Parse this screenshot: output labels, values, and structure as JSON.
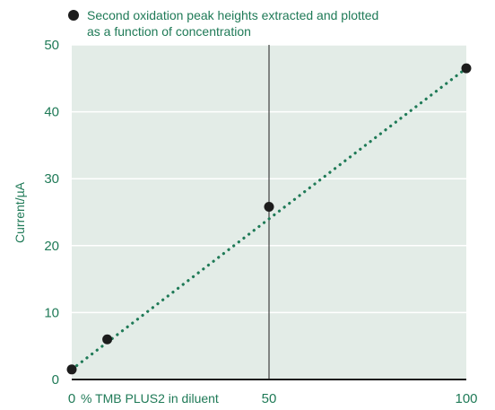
{
  "chart_data": {
    "type": "scatter",
    "legend": {
      "line1": "Second oxidation peak heights extracted and plotted",
      "line2": "as a function of concentration",
      "placement": "top-left"
    },
    "ylabel": "Current/µA",
    "xlabel": "% TMB PLUS2 in diluent",
    "xlim": [
      0,
      100
    ],
    "ylim": [
      0,
      50
    ],
    "x_ticks": [
      "0",
      "50",
      "100"
    ],
    "y_ticks": [
      "0",
      "10",
      "20",
      "30",
      "40",
      "50"
    ],
    "grid": true,
    "series": [
      {
        "points": [
          {
            "x": 0,
            "y": 1.5
          },
          {
            "x": 9,
            "y": 6
          },
          {
            "x": 50,
            "y": 25.8
          },
          {
            "x": 100,
            "y": 46.5
          }
        ]
      }
    ],
    "trendline": {
      "style": "dotted",
      "x_start": 0,
      "y_start": 1.5,
      "x_end": 100,
      "y_end": 46.5
    },
    "reference_line_x": 50,
    "colors": {
      "plot_bg": "#e3ece7",
      "grid": "#ffffff",
      "marker": "#1c1c1c",
      "trend": "#1f7a57",
      "text": "#1f7a57",
      "axis": "#1c1c1c"
    }
  }
}
